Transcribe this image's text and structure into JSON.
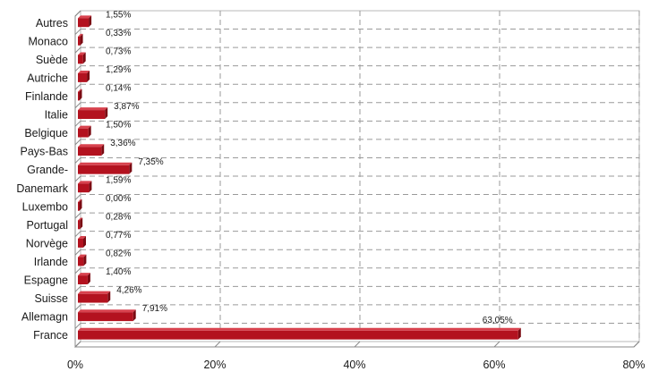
{
  "chart_data": {
    "type": "bar",
    "orientation": "horizontal",
    "categories": [
      "Autres",
      "Monaco",
      "Suède",
      "Autriche",
      "Finlande",
      "Italie",
      "Belgique",
      "Pays-Bas",
      "Grande-",
      "Danemark",
      "Luxembo",
      "Portugal",
      "Norvège",
      "Irlande",
      "Espagne",
      "Suisse",
      "Allemagn",
      "France"
    ],
    "values": [
      1.55,
      0.33,
      0.73,
      1.29,
      0.14,
      3.87,
      1.5,
      3.36,
      7.35,
      1.59,
      0.0,
      0.28,
      0.77,
      0.82,
      1.4,
      4.26,
      7.91,
      63.05
    ],
    "data_labels": [
      "1,55%",
      "0,33%",
      "0,73%",
      "1,29%",
      "0,14%",
      "3,87%",
      "1,50%",
      "3,36%",
      "7,35%",
      "1,59%",
      "0,00%",
      "0,28%",
      "0,77%",
      "0,82%",
      "1,40%",
      "4,26%",
      "7,91%",
      "63,05%"
    ],
    "x_ticks": [
      "0%",
      "20%",
      "40%",
      "60%",
      "80%"
    ],
    "xlim": [
      0,
      80
    ],
    "grid": true,
    "bar_color": "#b3121f",
    "bar_side_color": "#7a0a12",
    "bar_top_color": "#d8424e",
    "grid_color": "#9a9a9a",
    "title": "",
    "xlabel": "",
    "ylabel": ""
  }
}
